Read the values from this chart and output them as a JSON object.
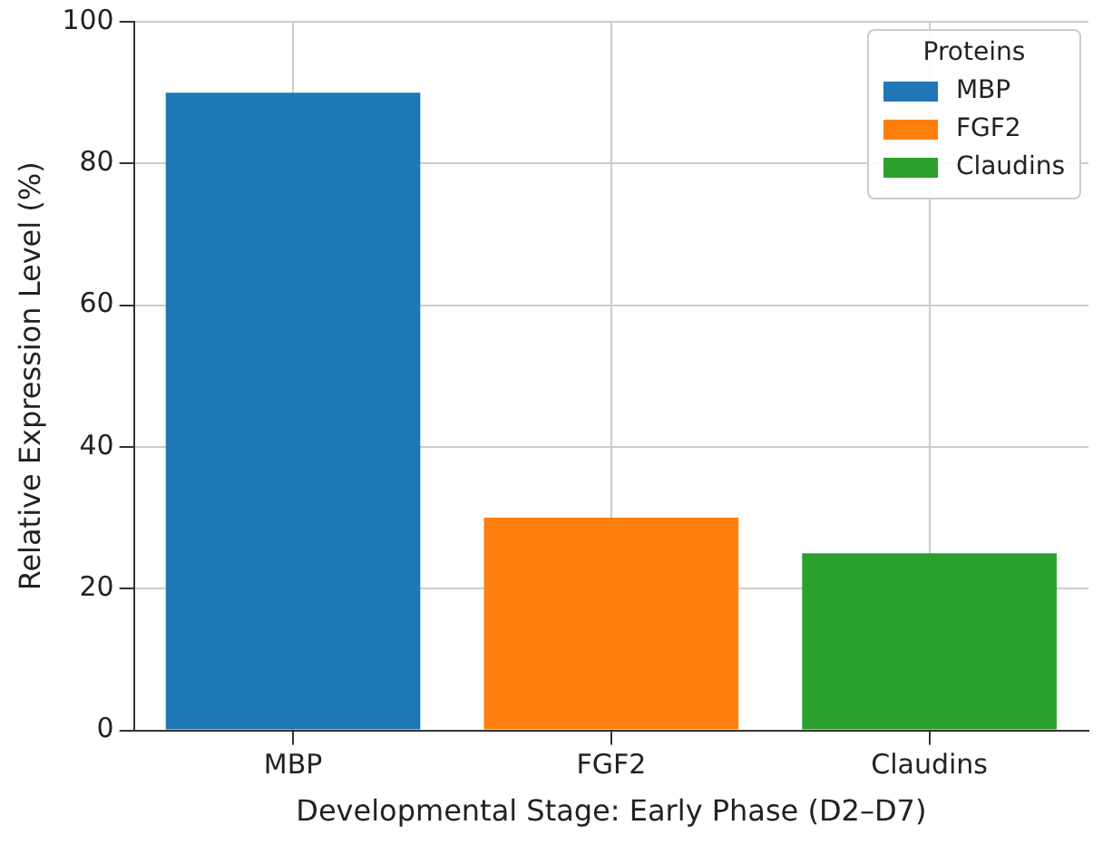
{
  "chart_data": {
    "type": "bar",
    "xlabel": "Developmental Stage: Early Phase (D2–D7)",
    "ylabel": "Relative Expression Level (%)",
    "legend_title": "Proteins",
    "categories": [
      "MBP",
      "FGF2",
      "Claudins"
    ],
    "series": [
      {
        "name": "MBP",
        "color": "#1f77b4",
        "values": [
          90,
          null,
          null
        ]
      },
      {
        "name": "FGF2",
        "color": "#ff7f0e",
        "values": [
          null,
          30,
          null
        ]
      },
      {
        "name": "Claudins",
        "color": "#2ca02c",
        "values": [
          null,
          null,
          25
        ]
      }
    ],
    "ylim": [
      0,
      100
    ],
    "yticks": [
      0,
      20,
      40,
      60,
      80,
      100
    ],
    "grid": true,
    "legend": "top right"
  }
}
